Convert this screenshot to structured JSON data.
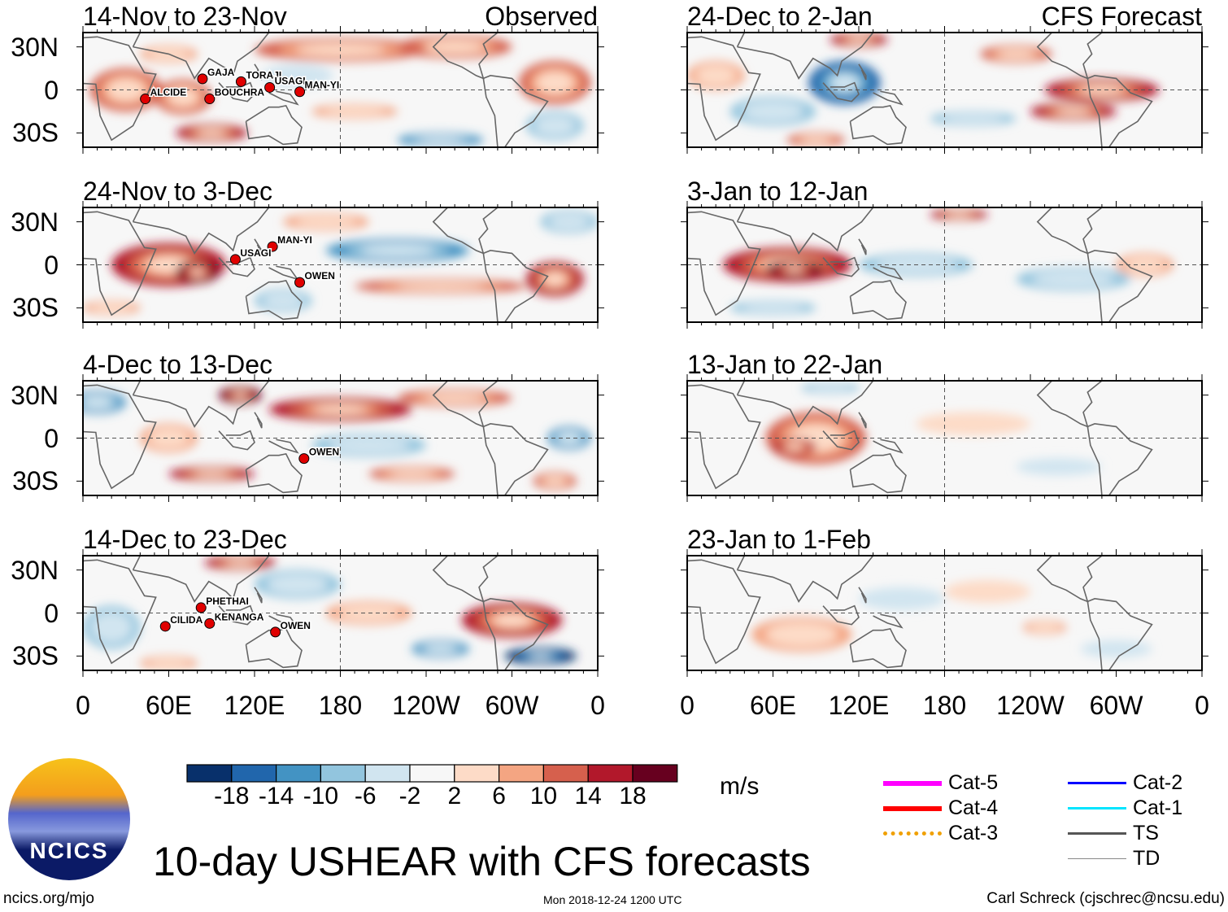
{
  "chart_data": {
    "type": "heatmap",
    "title": "10-day USHEAR with CFS forecasts",
    "units": "m/s",
    "lon_ticks": [
      "0",
      "60E",
      "120E",
      "180",
      "120W",
      "60W",
      "0"
    ],
    "lat_ticks": [
      "30N",
      "0",
      "30S"
    ],
    "lon_range": [
      0,
      360
    ],
    "lat_range": [
      -40,
      40
    ],
    "colorbar": {
      "levels": [
        "-18",
        "-14",
        "-10",
        "-6",
        "-2",
        "2",
        "6",
        "10",
        "14",
        "18"
      ],
      "colors": [
        "#08306b",
        "#2166ac",
        "#4393c3",
        "#92c5de",
        "#d1e5f0",
        "#f7f7f7",
        "#fddbc7",
        "#f4a582",
        "#d6604d",
        "#b2182b",
        "#67001f"
      ]
    },
    "panels": [
      {
        "title": "14-Nov to 23-Nov",
        "tag": "Observed",
        "column": "left",
        "anomalies": [
          [
            30,
            0,
            25,
            15,
            12
          ],
          [
            70,
            -5,
            20,
            12,
            10
          ],
          [
            180,
            28,
            60,
            8,
            12
          ],
          [
            260,
            30,
            40,
            8,
            10
          ],
          [
            330,
            5,
            25,
            15,
            10
          ],
          [
            90,
            -30,
            25,
            6,
            14
          ],
          [
            250,
            -35,
            30,
            5,
            -10
          ],
          [
            190,
            -15,
            30,
            5,
            8
          ],
          [
            150,
            10,
            25,
            8,
            -4
          ],
          [
            330,
            -25,
            20,
            10,
            -8
          ],
          [
            60,
            25,
            20,
            6,
            8
          ]
        ],
        "storms": [
          {
            "name": "GAJA",
            "lon": 87,
            "lat": 10
          },
          {
            "name": "TORAJI",
            "lon": 114,
            "lat": 8
          },
          {
            "name": "USAGI",
            "lon": 134,
            "lat": 4
          },
          {
            "name": "MAN-YI",
            "lon": 155,
            "lat": 1
          },
          {
            "name": "ALCIDE",
            "lon": 47,
            "lat": -4
          },
          {
            "name": "BOUCHRA",
            "lon": 92,
            "lat": -4
          }
        ]
      },
      {
        "title": "24-Nov to 3-Dec",
        "tag": "",
        "column": "left",
        "anomalies": [
          [
            60,
            0,
            40,
            15,
            16
          ],
          [
            80,
            -5,
            15,
            8,
            18
          ],
          [
            220,
            10,
            50,
            8,
            -12
          ],
          [
            250,
            -15,
            60,
            5,
            12
          ],
          [
            330,
            -10,
            20,
            12,
            14
          ],
          [
            170,
            30,
            30,
            6,
            8
          ],
          [
            20,
            -30,
            20,
            5,
            8
          ],
          [
            340,
            30,
            20,
            8,
            -8
          ],
          [
            140,
            -25,
            20,
            8,
            -6
          ]
        ],
        "storms": [
          {
            "name": "MAN-YI",
            "lon": 136,
            "lat": 15
          },
          {
            "name": "USAGI",
            "lon": 110,
            "lat": 6
          },
          {
            "name": "OWEN",
            "lon": 155,
            "lat": -10
          }
        ]
      },
      {
        "title": "4-Dec to 13-Dec",
        "tag": "",
        "column": "left",
        "anomalies": [
          [
            180,
            20,
            50,
            8,
            16
          ],
          [
            110,
            30,
            15,
            6,
            18
          ],
          [
            260,
            28,
            40,
            6,
            12
          ],
          [
            10,
            25,
            20,
            8,
            -10
          ],
          [
            90,
            -25,
            30,
            5,
            14
          ],
          [
            230,
            -25,
            30,
            5,
            10
          ],
          [
            340,
            0,
            15,
            8,
            -10
          ],
          [
            200,
            -5,
            40,
            8,
            -6
          ],
          [
            60,
            0,
            20,
            10,
            6
          ],
          [
            330,
            -30,
            15,
            6,
            10
          ]
        ],
        "storms": [
          {
            "name": "OWEN",
            "lon": 158,
            "lat": -12
          }
        ]
      },
      {
        "title": "14-Dec to 23-Dec",
        "tag": "",
        "column": "left",
        "anomalies": [
          [
            110,
            35,
            25,
            5,
            16
          ],
          [
            300,
            -5,
            35,
            12,
            14
          ],
          [
            320,
            -30,
            25,
            6,
            -18
          ],
          [
            20,
            -10,
            20,
            15,
            -6
          ],
          [
            150,
            20,
            30,
            10,
            -6
          ],
          [
            200,
            0,
            30,
            8,
            6
          ],
          [
            250,
            -25,
            20,
            6,
            -10
          ],
          [
            60,
            -35,
            20,
            5,
            8
          ]
        ],
        "storms": [
          {
            "name": "PHETHAI",
            "lon": 86,
            "lat": 6
          },
          {
            "name": "CILIDA",
            "lon": 61,
            "lat": -7
          },
          {
            "name": "KENANGA",
            "lon": 92,
            "lat": -5
          },
          {
            "name": "OWEN",
            "lon": 138,
            "lat": -11
          }
        ]
      },
      {
        "title": "24-Dec to 2-Jan",
        "tag": "CFS Forecast",
        "column": "right",
        "anomalies": [
          [
            110,
            5,
            25,
            15,
            -14
          ],
          [
            290,
            0,
            40,
            8,
            16
          ],
          [
            270,
            -15,
            30,
            6,
            14
          ],
          [
            230,
            25,
            25,
            6,
            10
          ],
          [
            120,
            35,
            20,
            5,
            14
          ],
          [
            60,
            -15,
            30,
            10,
            -8
          ],
          [
            200,
            -20,
            30,
            5,
            -6
          ],
          [
            20,
            10,
            20,
            10,
            8
          ],
          [
            90,
            -35,
            20,
            5,
            12
          ]
        ],
        "storms": []
      },
      {
        "title": "3-Jan to 12-Jan",
        "tag": "",
        "column": "right",
        "anomalies": [
          [
            70,
            0,
            45,
            12,
            16
          ],
          [
            75,
            -3,
            20,
            6,
            18
          ],
          [
            190,
            35,
            20,
            4,
            14
          ],
          [
            160,
            0,
            40,
            8,
            -6
          ],
          [
            270,
            -10,
            40,
            8,
            -8
          ],
          [
            320,
            0,
            20,
            8,
            8
          ],
          [
            60,
            -30,
            30,
            5,
            -8
          ]
        ],
        "storms": []
      },
      {
        "title": "13-Jan to 22-Jan",
        "tag": "",
        "column": "right",
        "anomalies": [
          [
            90,
            0,
            35,
            18,
            10
          ],
          [
            75,
            -6,
            15,
            6,
            16
          ],
          [
            100,
            35,
            20,
            4,
            -8
          ],
          [
            200,
            10,
            40,
            8,
            4
          ],
          [
            260,
            -20,
            30,
            6,
            -4
          ]
        ],
        "storms": []
      },
      {
        "title": "23-Jan to 1-Feb",
        "tag": "",
        "column": "right",
        "anomalies": [
          [
            80,
            -15,
            35,
            12,
            6
          ],
          [
            210,
            15,
            30,
            8,
            5
          ],
          [
            250,
            -10,
            15,
            5,
            8
          ],
          [
            150,
            10,
            30,
            8,
            -3
          ],
          [
            300,
            -25,
            25,
            6,
            -3
          ]
        ],
        "storms": []
      }
    ]
  },
  "footer": {
    "logo_text": "NCICS",
    "url": "ncics.org/mjo",
    "timestamp": "Mon 2018-12-24 1200 UTC",
    "credit": "Carl Schreck (cjschrec@ncsu.edu)"
  },
  "legend": [
    {
      "label": "Cat-5",
      "color": "#ff00ff",
      "style": "thick"
    },
    {
      "label": "Cat-4",
      "color": "#ff0000",
      "style": "thick"
    },
    {
      "label": "Cat-3",
      "color": "#f0a000",
      "style": "dotted"
    },
    {
      "label": "Cat-2",
      "color": "#0000ff",
      "style": "medium"
    },
    {
      "label": "Cat-1",
      "color": "#00e5ff",
      "style": "medium"
    },
    {
      "label": "TS",
      "color": "#555555",
      "style": "medium"
    },
    {
      "label": "TD",
      "color": "#888888",
      "style": "thin"
    }
  ]
}
